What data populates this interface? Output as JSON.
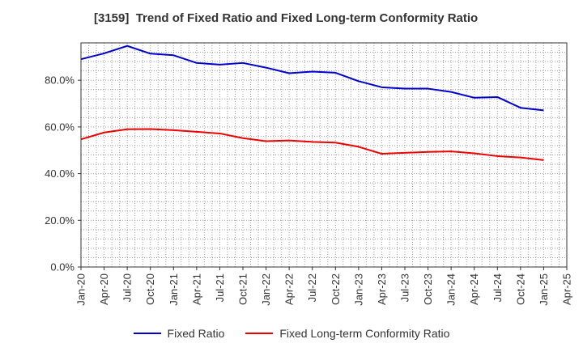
{
  "title": "[3159]  Trend of Fixed Ratio and Fixed Long-term Conformity Ratio",
  "chart_data": {
    "type": "line",
    "title": "[3159]  Trend of Fixed Ratio and Fixed Long-term Conformity Ratio",
    "xlabel": "",
    "ylabel": "",
    "ylim": [
      0,
      96
    ],
    "x_ticks": [
      "Jan-20",
      "Apr-20",
      "Jul-20",
      "Oct-20",
      "Jan-21",
      "Apr-21",
      "Jul-21",
      "Oct-21",
      "Jan-22",
      "Apr-22",
      "Jul-22",
      "Oct-22",
      "Jan-23",
      "Apr-23",
      "Jul-23",
      "Oct-23",
      "Jan-24",
      "Apr-24",
      "Jul-24",
      "Oct-24",
      "Jan-25",
      "Apr-25"
    ],
    "y_ticks": [
      0,
      20,
      40,
      60,
      80
    ],
    "y_tick_labels": [
      "0.0%",
      "20.0%",
      "40.0%",
      "60.0%",
      "80.0%"
    ],
    "grid": true,
    "legend_position": "bottom",
    "x": [
      "Jan-20",
      "Apr-20",
      "Jul-20",
      "Oct-20",
      "Jan-21",
      "Apr-21",
      "Jul-21",
      "Oct-21",
      "Jan-22",
      "Apr-22",
      "Jul-22",
      "Oct-22",
      "Jan-23",
      "Apr-23",
      "Jul-23",
      "Oct-23",
      "Jan-24",
      "Apr-24",
      "Jul-24",
      "Oct-24",
      "Jan-25"
    ],
    "series": [
      {
        "name": "Fixed Ratio",
        "color": "#0000cc",
        "values": [
          89.0,
          91.5,
          94.7,
          91.4,
          90.7,
          87.4,
          86.7,
          87.4,
          85.4,
          83.0,
          83.7,
          83.2,
          79.6,
          77.0,
          76.4,
          76.4,
          75.0,
          72.5,
          72.8,
          68.2,
          67.1
        ]
      },
      {
        "name": "Fixed Long-term Conformity Ratio",
        "color": "#ee0000",
        "values": [
          54.7,
          57.6,
          59.0,
          59.1,
          58.6,
          57.9,
          57.2,
          55.2,
          53.9,
          54.2,
          53.6,
          53.3,
          51.5,
          48.5,
          48.9,
          49.3,
          49.5,
          48.7,
          47.5,
          46.9,
          45.8
        ]
      }
    ]
  }
}
